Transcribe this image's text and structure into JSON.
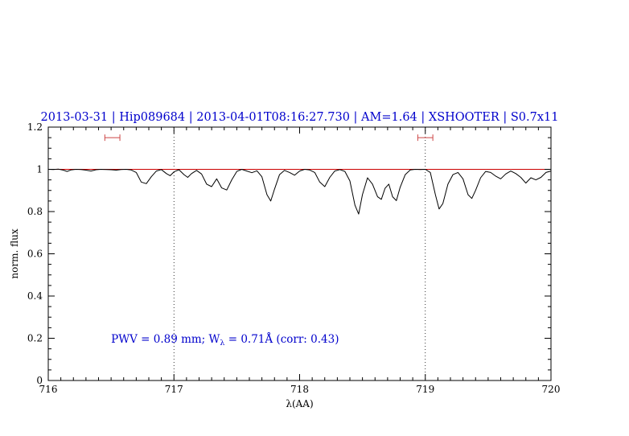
{
  "colors": {
    "title": "#0000cc",
    "annotation": "#0000cc",
    "spectrum": "#000000",
    "continuum": "#cc0000",
    "marker": "#cc4444",
    "frame": "#000000"
  },
  "chart_data": {
    "type": "line",
    "title": "2013-03-31 | Hip089684 | 2013-04-01T08:16:27.730 | AM=1.64 | XSHOOTER | S0.7x11",
    "xlabel": "λ(AA)",
    "ylabel": "norm. flux",
    "xlim": [
      716,
      720
    ],
    "ylim": [
      0,
      1.2
    ],
    "x_ticks": [
      716,
      717,
      718,
      719,
      720
    ],
    "x_tick_labels": [
      "716",
      "717",
      "718",
      "719",
      "720"
    ],
    "y_ticks": [
      0,
      0.2,
      0.4,
      0.6,
      0.8,
      1,
      1.2
    ],
    "y_tick_labels": [
      "0",
      "0.2",
      "0.4",
      "0.6",
      "0.8",
      "1",
      "1.2"
    ],
    "x_minor_step": 0.1,
    "y_minor_step": 0.05,
    "grid": "off",
    "legend": "none",
    "vlines": [
      717,
      719
    ],
    "continuum_y": 1.0,
    "markers": [
      {
        "x1": 716.45,
        "x2": 716.57,
        "y": 1.15
      },
      {
        "x1": 718.94,
        "x2": 719.06,
        "y": 1.15
      }
    ],
    "annotation": {
      "x": 716.5,
      "y": 0.18,
      "part1": "PWV = 0.89 mm; W",
      "sub": "λ",
      "part2": " = 0.71Å (corr: 0.43)"
    },
    "series": [
      {
        "name": "normalized spectrum",
        "points": [
          [
            716.0,
            1.0
          ],
          [
            716.04,
            0.999
          ],
          [
            716.08,
            1.001
          ],
          [
            716.12,
            0.996
          ],
          [
            716.15,
            0.99
          ],
          [
            716.18,
            0.997
          ],
          [
            716.22,
            1.0
          ],
          [
            716.26,
            0.999
          ],
          [
            716.3,
            0.996
          ],
          [
            716.34,
            0.992
          ],
          [
            716.38,
            0.998
          ],
          [
            716.42,
            1.0
          ],
          [
            716.46,
            0.999
          ],
          [
            716.5,
            0.998
          ],
          [
            716.54,
            0.996
          ],
          [
            716.58,
            0.999
          ],
          [
            716.62,
            1.0
          ],
          [
            716.66,
            0.997
          ],
          [
            716.7,
            0.985
          ],
          [
            716.74,
            0.94
          ],
          [
            716.78,
            0.932
          ],
          [
            716.82,
            0.965
          ],
          [
            716.86,
            0.992
          ],
          [
            716.9,
            0.999
          ],
          [
            716.94,
            0.98
          ],
          [
            716.97,
            0.97
          ],
          [
            717.0,
            0.988
          ],
          [
            717.04,
            0.998
          ],
          [
            717.08,
            0.975
          ],
          [
            717.11,
            0.962
          ],
          [
            717.14,
            0.98
          ],
          [
            717.18,
            0.995
          ],
          [
            717.22,
            0.978
          ],
          [
            717.26,
            0.93
          ],
          [
            717.3,
            0.918
          ],
          [
            717.34,
            0.955
          ],
          [
            717.38,
            0.912
          ],
          [
            717.42,
            0.902
          ],
          [
            717.46,
            0.95
          ],
          [
            717.5,
            0.99
          ],
          [
            717.54,
            1.0
          ],
          [
            717.58,
            0.992
          ],
          [
            717.62,
            0.984
          ],
          [
            717.66,
            0.993
          ],
          [
            717.7,
            0.965
          ],
          [
            717.74,
            0.88
          ],
          [
            717.77,
            0.85
          ],
          [
            717.8,
            0.905
          ],
          [
            717.84,
            0.975
          ],
          [
            717.88,
            0.995
          ],
          [
            717.92,
            0.985
          ],
          [
            717.96,
            0.972
          ],
          [
            718.0,
            0.992
          ],
          [
            718.04,
            1.0
          ],
          [
            718.08,
            0.997
          ],
          [
            718.12,
            0.985
          ],
          [
            718.16,
            0.94
          ],
          [
            718.2,
            0.918
          ],
          [
            718.24,
            0.962
          ],
          [
            718.28,
            0.992
          ],
          [
            718.32,
            0.999
          ],
          [
            718.36,
            0.99
          ],
          [
            718.4,
            0.945
          ],
          [
            718.44,
            0.83
          ],
          [
            718.47,
            0.788
          ],
          [
            718.5,
            0.88
          ],
          [
            718.54,
            0.96
          ],
          [
            718.58,
            0.93
          ],
          [
            718.62,
            0.87
          ],
          [
            718.65,
            0.858
          ],
          [
            718.68,
            0.91
          ],
          [
            718.71,
            0.93
          ],
          [
            718.74,
            0.87
          ],
          [
            718.77,
            0.852
          ],
          [
            718.8,
            0.915
          ],
          [
            718.84,
            0.975
          ],
          [
            718.88,
            0.997
          ],
          [
            718.92,
            1.0
          ],
          [
            718.96,
            0.999
          ],
          [
            719.0,
            1.0
          ],
          [
            719.04,
            0.985
          ],
          [
            719.08,
            0.88
          ],
          [
            719.11,
            0.812
          ],
          [
            719.14,
            0.838
          ],
          [
            719.18,
            0.93
          ],
          [
            719.22,
            0.975
          ],
          [
            719.26,
            0.985
          ],
          [
            719.3,
            0.955
          ],
          [
            719.34,
            0.88
          ],
          [
            719.37,
            0.862
          ],
          [
            719.4,
            0.9
          ],
          [
            719.44,
            0.96
          ],
          [
            719.48,
            0.99
          ],
          [
            719.52,
            0.985
          ],
          [
            719.56,
            0.968
          ],
          [
            719.6,
            0.955
          ],
          [
            719.64,
            0.978
          ],
          [
            719.68,
            0.992
          ],
          [
            719.72,
            0.98
          ],
          [
            719.76,
            0.962
          ],
          [
            719.8,
            0.935
          ],
          [
            719.84,
            0.96
          ],
          [
            719.88,
            0.95
          ],
          [
            719.92,
            0.962
          ],
          [
            719.96,
            0.985
          ],
          [
            720.0,
            0.992
          ]
        ]
      }
    ]
  }
}
